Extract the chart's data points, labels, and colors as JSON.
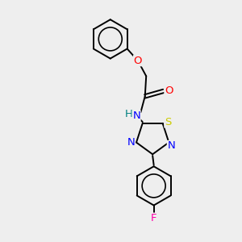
{
  "background_color": "#eeeeee",
  "bond_color": "#000000",
  "atom_colors": {
    "O": "#ff0000",
    "N": "#0000ff",
    "S": "#cccc00",
    "F": "#ff00aa",
    "H": "#008080",
    "C": "#000000"
  },
  "font_size": 9.5,
  "bond_width": 1.4,
  "fig_w": 3.0,
  "fig_h": 3.0,
  "dpi": 100,
  "xlim": [
    0,
    10
  ],
  "ylim": [
    0,
    10
  ]
}
